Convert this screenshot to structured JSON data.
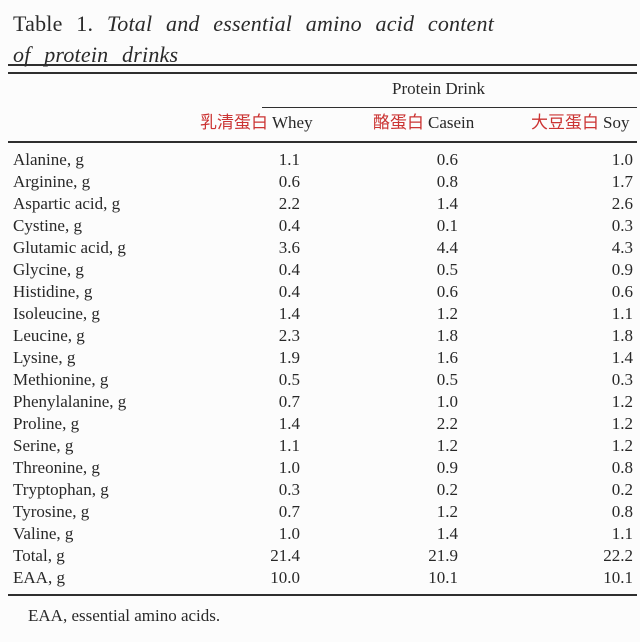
{
  "title": {
    "label": "Table 1.",
    "caption_line1": "Total and essential amino acid content",
    "caption_line2": "of protein drinks"
  },
  "table": {
    "group_header": "Protein Drink",
    "columns": [
      {
        "annotation": "乳清蛋白",
        "label": "Whey"
      },
      {
        "annotation": "酪蛋白",
        "label": "Casein"
      },
      {
        "annotation": "大豆蛋白",
        "label": "Soy"
      }
    ],
    "rows": [
      {
        "label": "Alanine, g",
        "whey": "1.1",
        "casein": "0.6",
        "soy": "1.0"
      },
      {
        "label": "Arginine, g",
        "whey": "0.6",
        "casein": "0.8",
        "soy": "1.7"
      },
      {
        "label": "Aspartic acid, g",
        "whey": "2.2",
        "casein": "1.4",
        "soy": "2.6"
      },
      {
        "label": "Cystine, g",
        "whey": "0.4",
        "casein": "0.1",
        "soy": "0.3"
      },
      {
        "label": "Glutamic acid, g",
        "whey": "3.6",
        "casein": "4.4",
        "soy": "4.3"
      },
      {
        "label": "Glycine, g",
        "whey": "0.4",
        "casein": "0.5",
        "soy": "0.9"
      },
      {
        "label": "Histidine, g",
        "whey": "0.4",
        "casein": "0.6",
        "soy": "0.6"
      },
      {
        "label": "Isoleucine, g",
        "whey": "1.4",
        "casein": "1.2",
        "soy": "1.1"
      },
      {
        "label": "Leucine, g",
        "whey": "2.3",
        "casein": "1.8",
        "soy": "1.8"
      },
      {
        "label": "Lysine, g",
        "whey": "1.9",
        "casein": "1.6",
        "soy": "1.4"
      },
      {
        "label": "Methionine, g",
        "whey": "0.5",
        "casein": "0.5",
        "soy": "0.3"
      },
      {
        "label": "Phenylalanine, g",
        "whey": "0.7",
        "casein": "1.0",
        "soy": "1.2"
      },
      {
        "label": "Proline, g",
        "whey": "1.4",
        "casein": "2.2",
        "soy": "1.2"
      },
      {
        "label": "Serine, g",
        "whey": "1.1",
        "casein": "1.2",
        "soy": "1.2"
      },
      {
        "label": "Threonine, g",
        "whey": "1.0",
        "casein": "0.9",
        "soy": "0.8"
      },
      {
        "label": "Tryptophan, g",
        "whey": "0.3",
        "casein": "0.2",
        "soy": "0.2"
      },
      {
        "label": "Tyrosine, g",
        "whey": "0.7",
        "casein": "1.2",
        "soy": "0.8"
      },
      {
        "label": "Valine, g",
        "whey": "1.0",
        "casein": "1.4",
        "soy": "1.1"
      },
      {
        "label": "Total, g",
        "whey": "21.4",
        "casein": "21.9",
        "soy": "22.2"
      },
      {
        "label": "EAA, g",
        "whey": "10.0",
        "casein": "10.1",
        "soy": "10.1"
      }
    ]
  },
  "footnote": "EAA, essential amino acids.",
  "colors": {
    "annotation_red": "#cb3433",
    "text": "#2a2a2a"
  }
}
